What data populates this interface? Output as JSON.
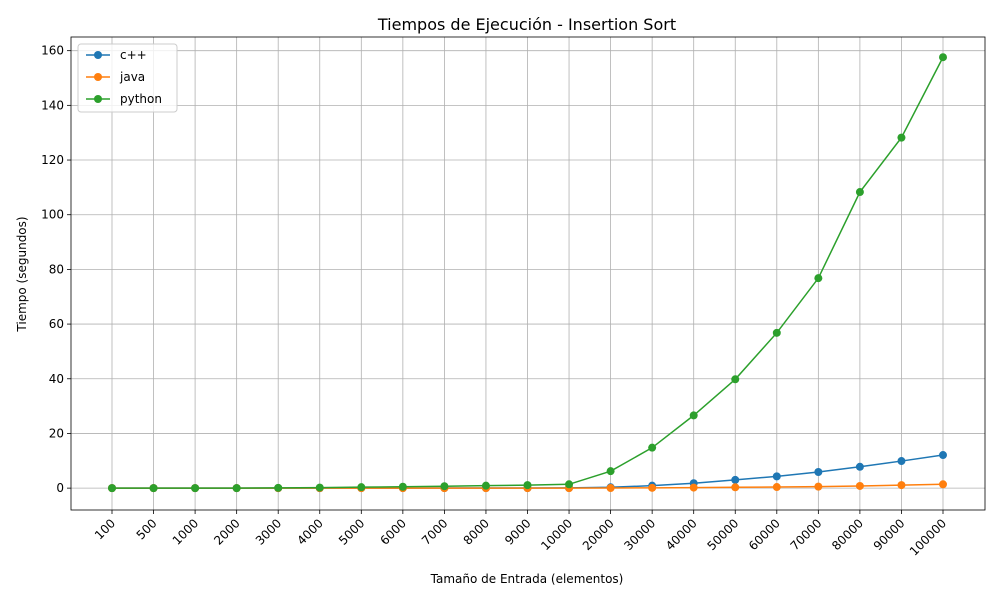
{
  "chart_data": {
    "type": "line",
    "title": "Tiempos de Ejecución - Insertion Sort",
    "xlabel": "Tamaño de Entrada (elementos)",
    "ylabel": "Tiempo (segundos)",
    "categories": [
      "100",
      "500",
      "1000",
      "2000",
      "3000",
      "4000",
      "5000",
      "6000",
      "7000",
      "8000",
      "9000",
      "10000",
      "20000",
      "30000",
      "40000",
      "50000",
      "60000",
      "70000",
      "80000",
      "90000",
      "100000"
    ],
    "ylim": [
      -8,
      165
    ],
    "yticks": [
      0,
      20,
      40,
      60,
      80,
      100,
      120,
      140,
      160
    ],
    "grid": true,
    "legend_position": "top-left",
    "marker": "circle",
    "series": [
      {
        "name": "c++",
        "color": "#1f77b4",
        "values": [
          0,
          0,
          0,
          0,
          0,
          0,
          0.01,
          0.02,
          0.03,
          0.04,
          0.05,
          0.07,
          0.3,
          0.9,
          1.8,
          3.0,
          4.3,
          5.9,
          7.8,
          9.9,
          12.1
        ]
      },
      {
        "name": "java",
        "color": "#ff7f0e",
        "values": [
          0,
          0,
          0,
          0,
          0,
          0,
          0,
          0,
          0,
          0,
          0,
          0,
          0.05,
          0.1,
          0.2,
          0.3,
          0.4,
          0.55,
          0.8,
          1.1,
          1.4
        ]
      },
      {
        "name": "python",
        "color": "#2ca02c",
        "values": [
          0,
          0,
          0,
          0,
          0.1,
          0.2,
          0.35,
          0.5,
          0.7,
          0.9,
          1.1,
          1.4,
          6.2,
          14.8,
          26.6,
          39.8,
          56.8,
          76.8,
          108.3,
          128.2,
          157.6
        ]
      }
    ]
  }
}
